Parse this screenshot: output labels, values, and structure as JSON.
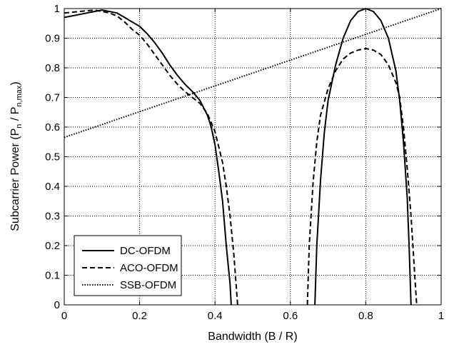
{
  "chart_data": {
    "type": "line",
    "xlabel": "Bandwidth (B / R)",
    "ylabel": "Subcarrier Power (P_n / P_n,max)",
    "ylabel_parts": {
      "main": "Subcarrier Power (P",
      "sub1": "n",
      "mid": " / P",
      "sub2": "n,max",
      "end": ")"
    },
    "xlim": [
      0,
      1
    ],
    "ylim": [
      0,
      1
    ],
    "xticks": [
      "0",
      "0.2",
      "0.4",
      "0.6",
      "0.8",
      "1"
    ],
    "yticks": [
      "0",
      "0.1",
      "0.2",
      "0.3",
      "0.4",
      "0.5",
      "0.6",
      "0.7",
      "0.8",
      "0.9",
      "1"
    ],
    "grid": true,
    "legend_position": "lower-left",
    "series": [
      {
        "name": "DC-OFDM",
        "style": "solid",
        "color": "#000000",
        "points": [
          [
            0.0,
            0.97
          ],
          [
            0.02,
            0.975
          ],
          [
            0.04,
            0.98
          ],
          [
            0.06,
            0.985
          ],
          [
            0.08,
            0.99
          ],
          [
            0.1,
            0.995
          ],
          [
            0.12,
            0.99
          ],
          [
            0.14,
            0.985
          ],
          [
            0.16,
            0.97
          ],
          [
            0.18,
            0.955
          ],
          [
            0.2,
            0.94
          ],
          [
            0.22,
            0.915
          ],
          [
            0.24,
            0.885
          ],
          [
            0.26,
            0.85
          ],
          [
            0.28,
            0.81
          ],
          [
            0.3,
            0.775
          ],
          [
            0.32,
            0.745
          ],
          [
            0.34,
            0.72
          ],
          [
            0.36,
            0.69
          ],
          [
            0.38,
            0.64
          ],
          [
            0.39,
            0.6
          ],
          [
            0.4,
            0.54
          ],
          [
            0.41,
            0.45
          ],
          [
            0.42,
            0.35
          ],
          [
            0.43,
            0.2
          ],
          [
            0.44,
            0.07
          ],
          [
            0.443,
            0.0
          ],
          null,
          [
            0.665,
            0.0
          ],
          [
            0.67,
            0.2
          ],
          [
            0.68,
            0.42
          ],
          [
            0.69,
            0.58
          ],
          [
            0.7,
            0.69
          ],
          [
            0.72,
            0.81
          ],
          [
            0.74,
            0.9
          ],
          [
            0.76,
            0.96
          ],
          [
            0.78,
            0.99
          ],
          [
            0.8,
            1.0
          ],
          [
            0.82,
            0.99
          ],
          [
            0.84,
            0.96
          ],
          [
            0.86,
            0.9
          ],
          [
            0.88,
            0.79
          ],
          [
            0.89,
            0.69
          ],
          [
            0.9,
            0.55
          ],
          [
            0.91,
            0.36
          ],
          [
            0.915,
            0.2
          ],
          [
            0.92,
            0.0
          ]
        ]
      },
      {
        "name": "ACO-OFDM",
        "style": "dashed",
        "color": "#000000",
        "points": [
          [
            0.0,
            0.985
          ],
          [
            0.04,
            0.99
          ],
          [
            0.08,
            0.995
          ],
          [
            0.1,
            0.99
          ],
          [
            0.12,
            0.985
          ],
          [
            0.14,
            0.975
          ],
          [
            0.16,
            0.955
          ],
          [
            0.18,
            0.93
          ],
          [
            0.2,
            0.91
          ],
          [
            0.22,
            0.88
          ],
          [
            0.24,
            0.845
          ],
          [
            0.26,
            0.81
          ],
          [
            0.28,
            0.775
          ],
          [
            0.3,
            0.745
          ],
          [
            0.32,
            0.72
          ],
          [
            0.34,
            0.7
          ],
          [
            0.36,
            0.68
          ],
          [
            0.38,
            0.645
          ],
          [
            0.4,
            0.585
          ],
          [
            0.42,
            0.48
          ],
          [
            0.43,
            0.4
          ],
          [
            0.44,
            0.3
          ],
          [
            0.45,
            0.17
          ],
          [
            0.46,
            0.0
          ],
          null,
          [
            0.645,
            0.0
          ],
          [
            0.65,
            0.2
          ],
          [
            0.66,
            0.41
          ],
          [
            0.67,
            0.55
          ],
          [
            0.68,
            0.64
          ],
          [
            0.7,
            0.73
          ],
          [
            0.72,
            0.79
          ],
          [
            0.74,
            0.83
          ],
          [
            0.76,
            0.85
          ],
          [
            0.78,
            0.86
          ],
          [
            0.8,
            0.865
          ],
          [
            0.82,
            0.86
          ],
          [
            0.84,
            0.845
          ],
          [
            0.86,
            0.81
          ],
          [
            0.88,
            0.75
          ],
          [
            0.89,
            0.7
          ],
          [
            0.9,
            0.6
          ],
          [
            0.91,
            0.46
          ],
          [
            0.92,
            0.3
          ],
          [
            0.93,
            0.1
          ],
          [
            0.935,
            0.0
          ]
        ]
      },
      {
        "name": "SSB-OFDM",
        "style": "dotted",
        "color": "#000000",
        "points": [
          [
            0.0,
            0.565
          ],
          [
            1.0,
            1.0
          ]
        ]
      }
    ]
  }
}
